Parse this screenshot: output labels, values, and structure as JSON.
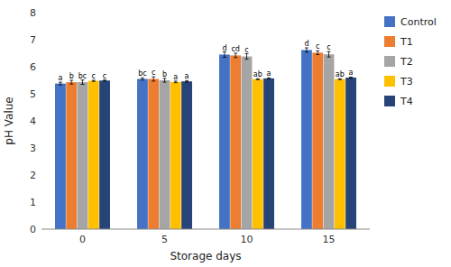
{
  "chart_data": {
    "type": "bar",
    "xlabel": "Storage days",
    "ylabel": "pH Value",
    "categories": [
      "0",
      "5",
      "10",
      "15"
    ],
    "ylim": [
      0,
      8
    ],
    "yticks": [
      0,
      1,
      2,
      3,
      4,
      5,
      6,
      7,
      8
    ],
    "grid": false,
    "legend": "right",
    "series": [
      {
        "name": "Control",
        "color": "#4472C4",
        "values": [
          5.38,
          5.55,
          6.45,
          6.62
        ],
        "errors": [
          0.05,
          0.04,
          0.1,
          0.08
        ],
        "letters": [
          "a",
          "bc",
          "d",
          "d"
        ]
      },
      {
        "name": "T1",
        "color": "#ED7D31",
        "values": [
          5.43,
          5.55,
          6.42,
          6.52
        ],
        "errors": [
          0.07,
          0.08,
          0.08,
          0.07
        ],
        "letters": [
          "b",
          "c",
          "cd",
          "c"
        ]
      },
      {
        "name": "T2",
        "color": "#A5A5A5",
        "values": [
          5.43,
          5.5,
          6.38,
          6.46
        ],
        "errors": [
          0.08,
          0.07,
          0.1,
          0.1
        ],
        "letters": [
          "bc",
          "b",
          "c",
          "c"
        ]
      },
      {
        "name": "T3",
        "color": "#FFC000",
        "values": [
          5.48,
          5.44,
          5.54,
          5.54
        ],
        "errors": [
          0.02,
          0.03,
          0.02,
          0.02
        ],
        "letters": [
          "c",
          "a",
          "ab",
          "ab"
        ]
      },
      {
        "name": "T4",
        "color": "#264478",
        "values": [
          5.49,
          5.46,
          5.57,
          5.6
        ],
        "errors": [
          0.02,
          0.03,
          0.02,
          0.02
        ],
        "letters": [
          "c",
          "a",
          "a",
          "a"
        ]
      }
    ]
  }
}
